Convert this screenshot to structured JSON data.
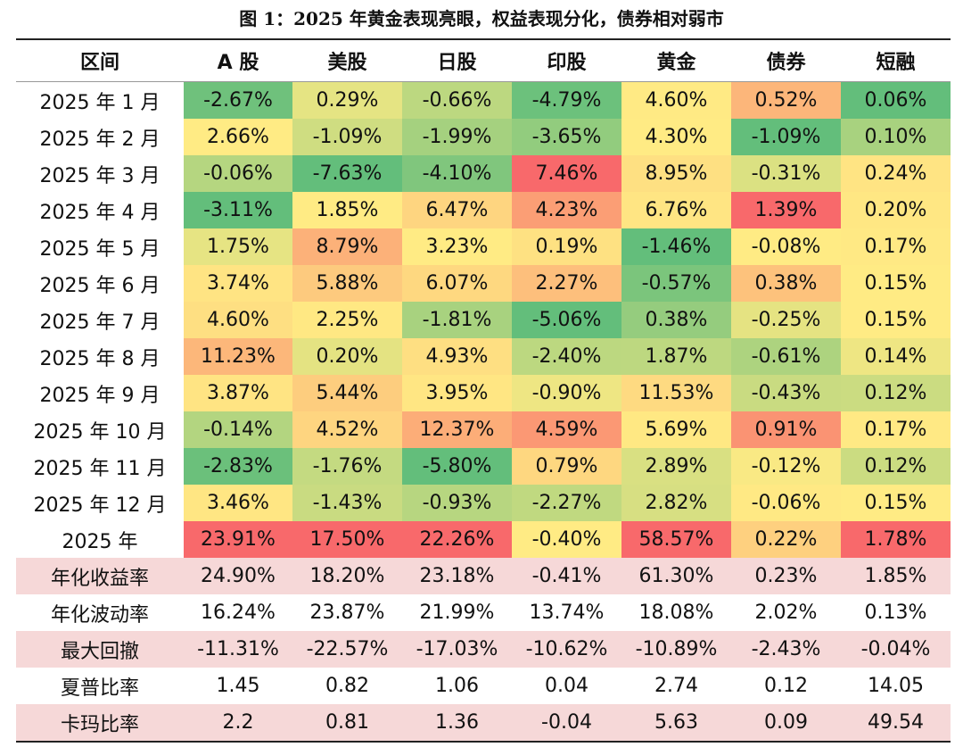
{
  "title": "图 1：2025 年黄金表现亮眼，权益表现分化，债券相对弱市",
  "chart_data": {
    "type": "table",
    "title": "图 1：2025 年黄金表现亮眼，权益表现分化，债券相对弱市",
    "header_label": "区间",
    "columns": [
      "A 股",
      "美股",
      "日股",
      "印股",
      "黄金",
      "债券",
      "短融"
    ],
    "heatmap_rows": [
      {
        "label": "2025 年 1 月",
        "cells": [
          "-2.67%",
          "0.29%",
          "-0.66%",
          "-4.79%",
          "4.60%",
          "0.52%",
          "0.06%"
        ],
        "values": [
          -2.67,
          0.29,
          -0.66,
          -4.79,
          4.6,
          0.52,
          0.06
        ]
      },
      {
        "label": "2025 年 2 月",
        "cells": [
          "2.66%",
          "-1.09%",
          "-1.99%",
          "-3.65%",
          "4.30%",
          "-1.09%",
          "0.10%"
        ],
        "values": [
          2.66,
          -1.09,
          -1.99,
          -3.65,
          4.3,
          -1.09,
          0.1
        ]
      },
      {
        "label": "2025 年 3 月",
        "cells": [
          "-0.06%",
          "-7.63%",
          "-4.10%",
          "7.46%",
          "8.95%",
          "-0.31%",
          "0.24%"
        ],
        "values": [
          -0.06,
          -7.63,
          -4.1,
          7.46,
          8.95,
          -0.31,
          0.24
        ]
      },
      {
        "label": "2025 年 4 月",
        "cells": [
          "-3.11%",
          "1.85%",
          "6.47%",
          "4.23%",
          "6.76%",
          "1.39%",
          "0.20%"
        ],
        "values": [
          -3.11,
          1.85,
          6.47,
          4.23,
          6.76,
          1.39,
          0.2
        ]
      },
      {
        "label": "2025 年 5 月",
        "cells": [
          "1.75%",
          "8.79%",
          "3.23%",
          "0.19%",
          "-1.46%",
          "-0.08%",
          "0.17%"
        ],
        "values": [
          1.75,
          8.79,
          3.23,
          0.19,
          -1.46,
          -0.08,
          0.17
        ]
      },
      {
        "label": "2025 年 6 月",
        "cells": [
          "3.74%",
          "5.88%",
          "6.07%",
          "2.27%",
          "-0.57%",
          "0.38%",
          "0.15%"
        ],
        "values": [
          3.74,
          5.88,
          6.07,
          2.27,
          -0.57,
          0.38,
          0.15
        ]
      },
      {
        "label": "2025 年 7 月",
        "cells": [
          "4.60%",
          "2.25%",
          "-1.81%",
          "-5.06%",
          "0.38%",
          "-0.25%",
          "0.15%"
        ],
        "values": [
          4.6,
          2.25,
          -1.81,
          -5.06,
          0.38,
          -0.25,
          0.15
        ]
      },
      {
        "label": "2025 年 8 月",
        "cells": [
          "11.23%",
          "0.20%",
          "4.93%",
          "-2.40%",
          "1.87%",
          "-0.61%",
          "0.14%"
        ],
        "values": [
          11.23,
          0.2,
          4.93,
          -2.4,
          1.87,
          -0.61,
          0.14
        ]
      },
      {
        "label": "2025 年 9 月",
        "cells": [
          "3.87%",
          "5.44%",
          "3.95%",
          "-0.90%",
          "11.53%",
          "-0.43%",
          "0.12%"
        ],
        "values": [
          3.87,
          5.44,
          3.95,
          -0.9,
          11.53,
          -0.43,
          0.12
        ]
      },
      {
        "label": "2025 年 10 月",
        "cells": [
          "-0.14%",
          "4.52%",
          "12.37%",
          "4.59%",
          "5.69%",
          "0.91%",
          "0.17%"
        ],
        "values": [
          -0.14,
          4.52,
          12.37,
          4.59,
          5.69,
          0.91,
          0.17
        ]
      },
      {
        "label": "2025 年 11 月",
        "cells": [
          "-2.83%",
          "-1.76%",
          "-5.80%",
          "0.79%",
          "2.89%",
          "-0.12%",
          "0.12%"
        ],
        "values": [
          -2.83,
          -1.76,
          -5.8,
          0.79,
          2.89,
          -0.12,
          0.12
        ]
      },
      {
        "label": "2025 年 12 月",
        "cells": [
          "3.46%",
          "-1.43%",
          "-0.93%",
          "-2.27%",
          "2.82%",
          "-0.06%",
          "0.15%"
        ],
        "values": [
          3.46,
          -1.43,
          -0.93,
          -2.27,
          2.82,
          -0.06,
          0.15
        ]
      },
      {
        "label": "2025 年",
        "cells": [
          "23.91%",
          "17.50%",
          "22.26%",
          "-0.40%",
          "58.57%",
          "0.22%",
          "1.78%"
        ],
        "values": [
          23.91,
          17.5,
          22.26,
          -0.4,
          58.57,
          0.22,
          1.78
        ]
      }
    ],
    "stat_rows": [
      {
        "label": "年化收益率",
        "cells": [
          "24.90%",
          "18.20%",
          "23.18%",
          "-0.41%",
          "61.30%",
          "0.23%",
          "1.85%"
        ]
      },
      {
        "label": "年化波动率",
        "cells": [
          "16.24%",
          "23.87%",
          "21.99%",
          "13.74%",
          "18.08%",
          "2.02%",
          "0.13%"
        ]
      },
      {
        "label": "最大回撤",
        "cells": [
          "-11.31%",
          "-22.57%",
          "-17.03%",
          "-10.62%",
          "-10.89%",
          "-2.43%",
          "-0.04%"
        ]
      },
      {
        "label": "夏普比率",
        "cells": [
          "1.45",
          "0.82",
          "1.06",
          "0.04",
          "2.74",
          "0.12",
          "14.05"
        ]
      },
      {
        "label": "卡玛比率",
        "cells": [
          "2.2",
          "0.81",
          "1.36",
          "-0.04",
          "5.63",
          "0.09",
          "49.54"
        ]
      }
    ],
    "color_scale": {
      "low": "#63be7b",
      "mid": "#ffeb84",
      "high": "#f8696b"
    }
  }
}
